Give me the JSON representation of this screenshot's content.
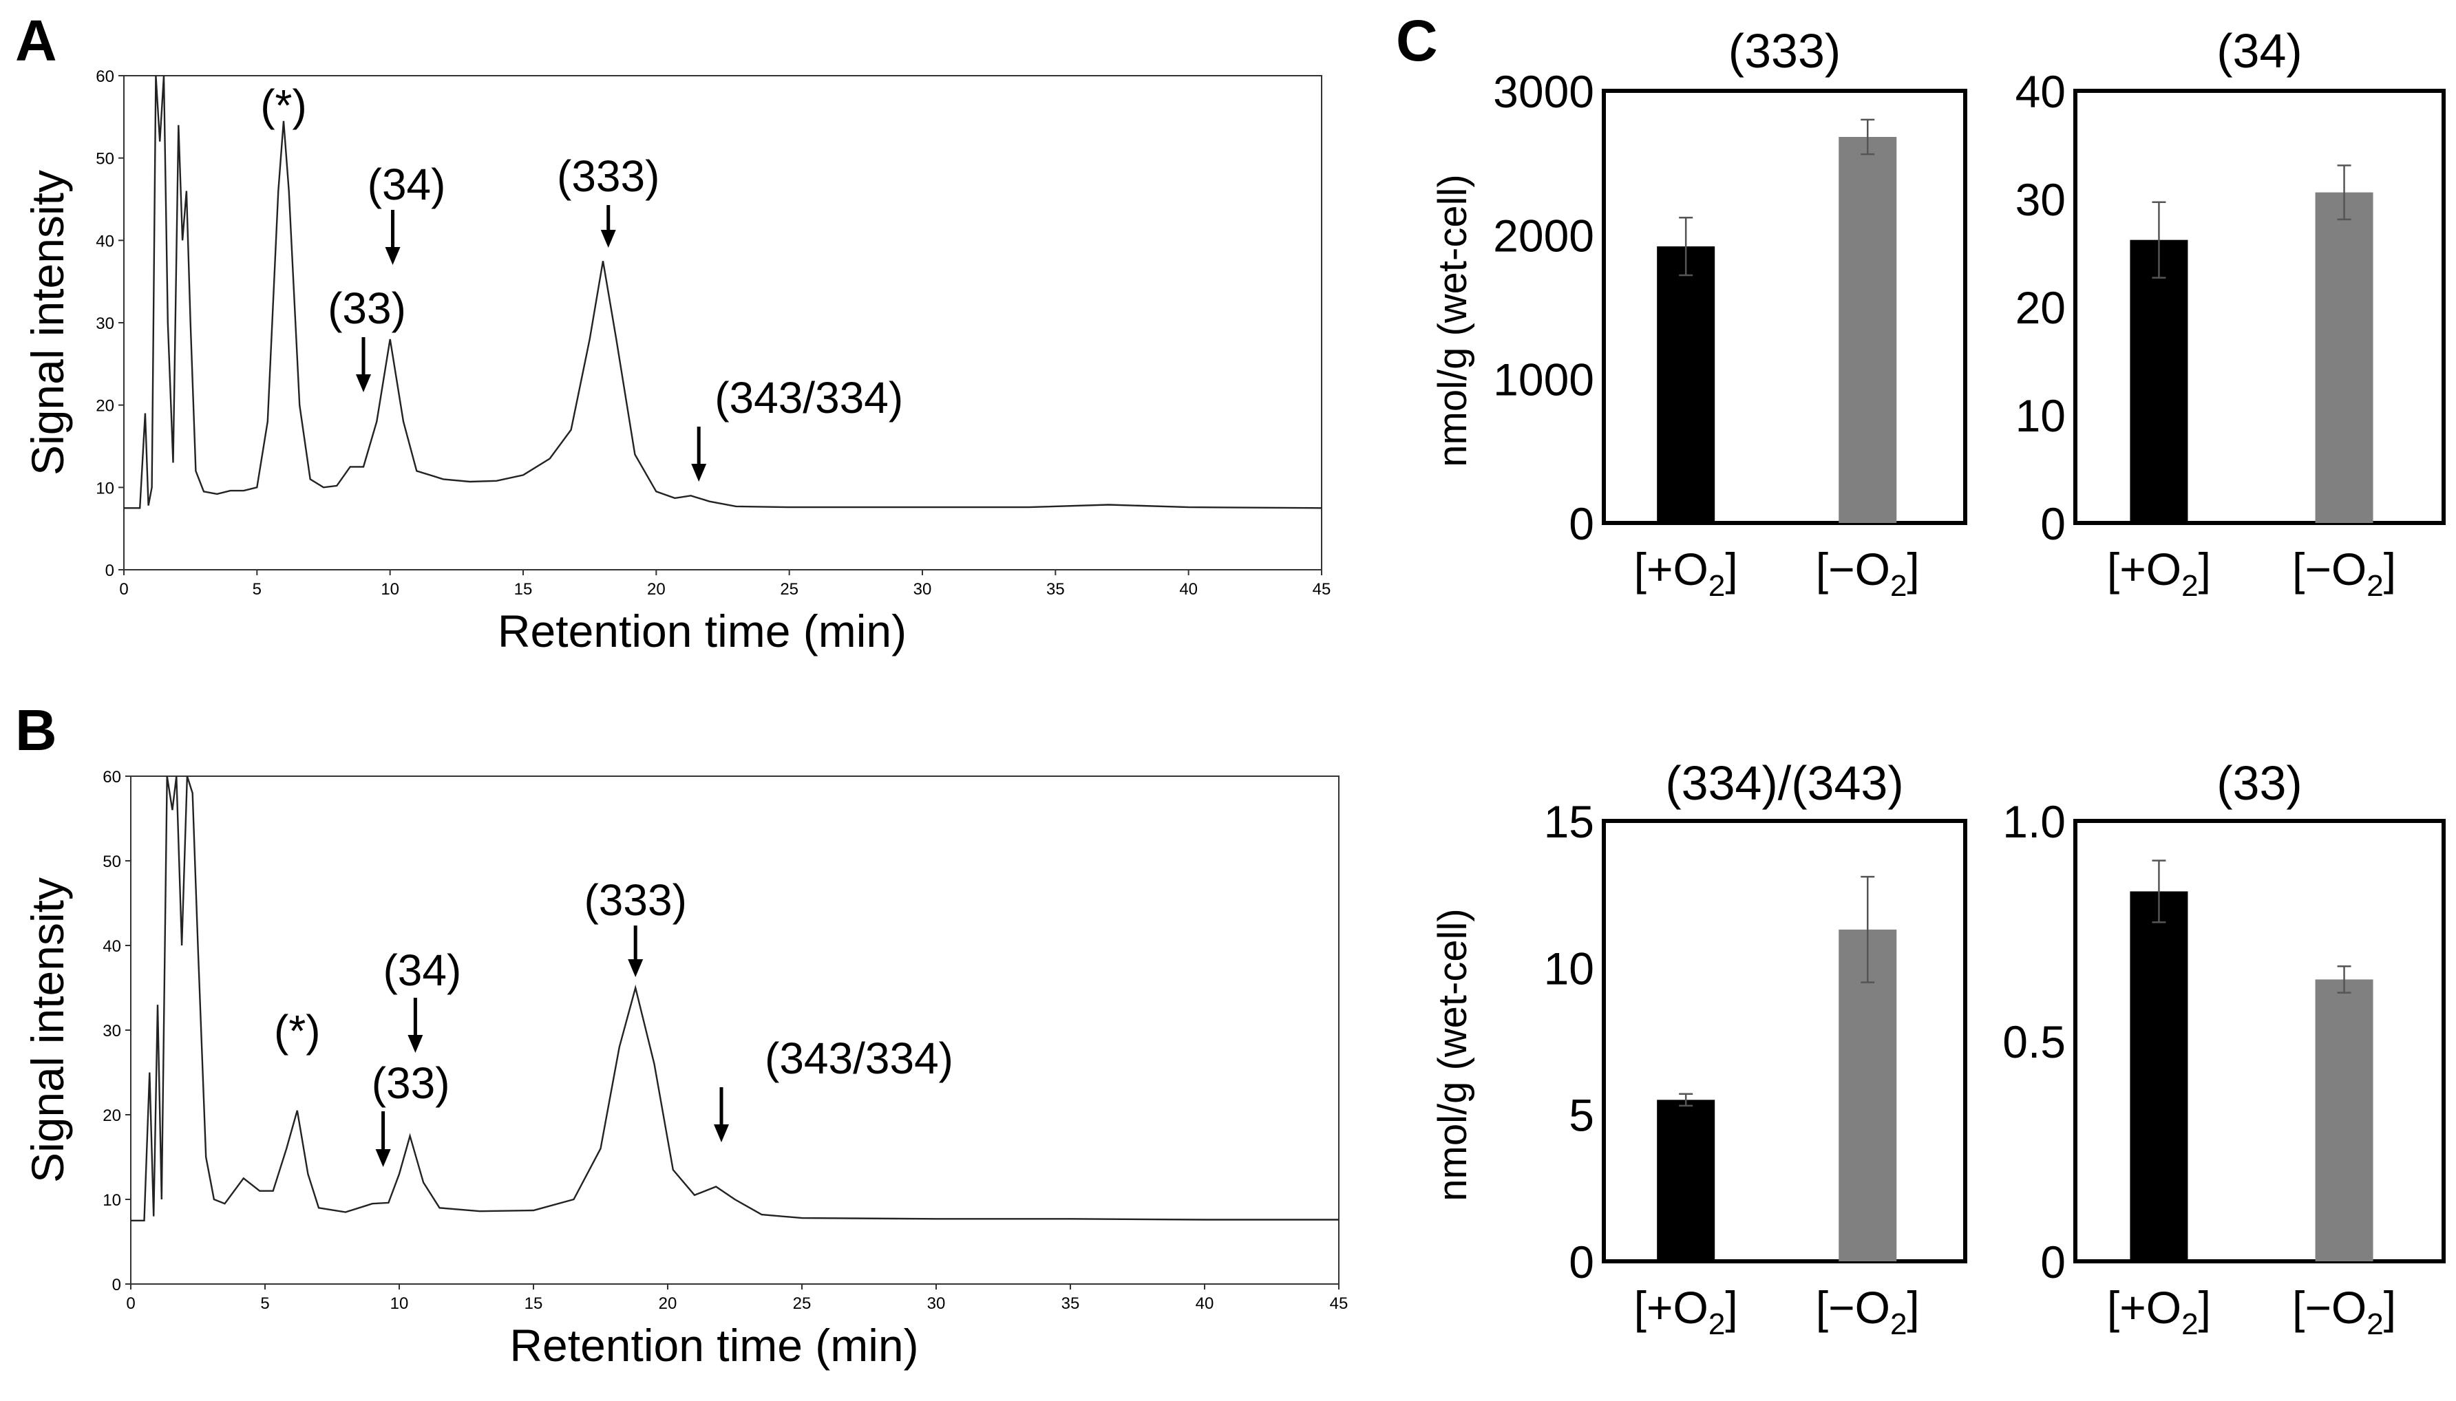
{
  "chart_data": [
    {
      "panel": "A",
      "type": "line",
      "xlabel": "Retention time (min)",
      "ylabel": "Signal intensity",
      "xlim": [
        0,
        45
      ],
      "ylim": [
        0,
        60
      ],
      "xticks": [
        0,
        5,
        10,
        15,
        20,
        25,
        30,
        35,
        40,
        45
      ],
      "yticks": [
        0,
        10,
        20,
        30,
        40,
        50,
        60
      ],
      "baseline": 7.5,
      "trace": [
        [
          0,
          7.5
        ],
        [
          0.6,
          7.5
        ],
        [
          0.8,
          19
        ],
        [
          0.92,
          7.8
        ],
        [
          1.05,
          10
        ],
        [
          1.2,
          60
        ],
        [
          1.35,
          52
        ],
        [
          1.5,
          60
        ],
        [
          1.65,
          30
        ],
        [
          1.85,
          13
        ],
        [
          2.05,
          54
        ],
        [
          2.2,
          40
        ],
        [
          2.35,
          46
        ],
        [
          2.5,
          30
        ],
        [
          2.7,
          12
        ],
        [
          3.0,
          9.5
        ],
        [
          3.5,
          9.2
        ],
        [
          4.0,
          9.6
        ],
        [
          4.5,
          9.6
        ],
        [
          5.0,
          10
        ],
        [
          5.4,
          18
        ],
        [
          5.8,
          46
        ],
        [
          6.0,
          54.5
        ],
        [
          6.2,
          46
        ],
        [
          6.6,
          20
        ],
        [
          7.0,
          11
        ],
        [
          7.5,
          10
        ],
        [
          8.0,
          10.2
        ],
        [
          8.5,
          12.5
        ],
        [
          9.0,
          12.5
        ],
        [
          9.5,
          18
        ],
        [
          10.0,
          28
        ],
        [
          10.5,
          18
        ],
        [
          11.0,
          12
        ],
        [
          12.0,
          11
        ],
        [
          13.0,
          10.7
        ],
        [
          14.0,
          10.8
        ],
        [
          15.0,
          11.5
        ],
        [
          16.0,
          13.5
        ],
        [
          16.8,
          17
        ],
        [
          17.5,
          28
        ],
        [
          18.0,
          37.5
        ],
        [
          18.5,
          28
        ],
        [
          19.2,
          14
        ],
        [
          20.0,
          9.5
        ],
        [
          20.7,
          8.7
        ],
        [
          21.3,
          9.0
        ],
        [
          22.0,
          8.3
        ],
        [
          23.0,
          7.7
        ],
        [
          25.0,
          7.6
        ],
        [
          30.0,
          7.6
        ],
        [
          34.0,
          7.6
        ],
        [
          37.0,
          7.9
        ],
        [
          40.0,
          7.6
        ],
        [
          45.0,
          7.5
        ]
      ],
      "annotations": [
        {
          "text": "(*)",
          "x": 6.0,
          "arrow": false
        },
        {
          "text": "(34)",
          "x": 10.1,
          "arrow": true
        },
        {
          "text": "(33)",
          "x": 9.0,
          "arrow": true
        },
        {
          "text": "(333)",
          "x": 18.2,
          "arrow": true
        },
        {
          "text": "(343/334)",
          "x": 21.6,
          "arrow": true
        }
      ]
    },
    {
      "panel": "B",
      "type": "line",
      "xlabel": "Retention time (min)",
      "ylabel": "Signal intensity",
      "xlim": [
        0,
        45
      ],
      "ylim": [
        0,
        60
      ],
      "xticks": [
        0,
        5,
        10,
        15,
        20,
        25,
        30,
        35,
        40,
        45
      ],
      "yticks": [
        0,
        10,
        20,
        30,
        40,
        50,
        60
      ],
      "baseline": 7.5,
      "trace": [
        [
          0,
          7.5
        ],
        [
          0.5,
          7.5
        ],
        [
          0.7,
          25
        ],
        [
          0.85,
          8
        ],
        [
          1.0,
          33
        ],
        [
          1.15,
          10
        ],
        [
          1.35,
          60
        ],
        [
          1.55,
          56
        ],
        [
          1.7,
          60
        ],
        [
          1.9,
          40
        ],
        [
          2.1,
          60
        ],
        [
          2.3,
          58
        ],
        [
          2.5,
          40
        ],
        [
          2.8,
          15
        ],
        [
          3.1,
          10
        ],
        [
          3.5,
          9.5
        ],
        [
          4.2,
          12.5
        ],
        [
          4.8,
          11
        ],
        [
          5.3,
          11
        ],
        [
          5.8,
          16
        ],
        [
          6.2,
          20.5
        ],
        [
          6.6,
          13
        ],
        [
          7.0,
          9
        ],
        [
          8.0,
          8.5
        ],
        [
          9.0,
          9.5
        ],
        [
          9.6,
          9.6
        ],
        [
          10.0,
          13
        ],
        [
          10.4,
          17.5
        ],
        [
          10.9,
          12
        ],
        [
          11.5,
          9
        ],
        [
          13.0,
          8.6
        ],
        [
          15.0,
          8.7
        ],
        [
          16.5,
          10
        ],
        [
          17.5,
          16
        ],
        [
          18.2,
          28
        ],
        [
          18.8,
          35
        ],
        [
          19.5,
          26
        ],
        [
          20.2,
          13.5
        ],
        [
          21.0,
          10.5
        ],
        [
          21.8,
          11.5
        ],
        [
          22.5,
          10
        ],
        [
          23.5,
          8.2
        ],
        [
          25.0,
          7.8
        ],
        [
          30.0,
          7.7
        ],
        [
          35.0,
          7.7
        ],
        [
          40.0,
          7.6
        ],
        [
          45.0,
          7.6
        ]
      ],
      "annotations": [
        {
          "text": "(*)",
          "x": 6.2,
          "arrow": false
        },
        {
          "text": "(34)",
          "x": 10.6,
          "arrow": true
        },
        {
          "text": "(33)",
          "x": 9.4,
          "arrow": true
        },
        {
          "text": "(333)",
          "x": 18.8,
          "arrow": true
        },
        {
          "text": "(343/334)",
          "x": 22.0,
          "arrow": true
        }
      ]
    },
    {
      "panel": "C",
      "type": "bar",
      "title": "(333)",
      "ylabel": "nmol/g (wet-cell)",
      "ylim": [
        0,
        3000
      ],
      "yticks": [
        "0",
        "1000",
        "2000",
        "3000"
      ],
      "categories": [
        {
          "main": "[+O",
          "sub": "2",
          "close": "]"
        },
        {
          "main": "[−O",
          "sub": "2",
          "close": "]"
        }
      ],
      "values": [
        1920,
        2680
      ],
      "errors": [
        200,
        120
      ],
      "colors": [
        "#000000",
        "#808080"
      ]
    },
    {
      "panel": "C",
      "type": "bar",
      "title": "(34)",
      "ylabel": "",
      "ylim": [
        0,
        40
      ],
      "yticks": [
        "0",
        "10",
        "20",
        "30",
        "40"
      ],
      "categories": [
        {
          "main": "[+O",
          "sub": "2",
          "close": "]"
        },
        {
          "main": "[−O",
          "sub": "2",
          "close": "]"
        }
      ],
      "values": [
        26.2,
        30.6
      ],
      "errors": [
        3.5,
        2.5
      ],
      "colors": [
        "#000000",
        "#808080"
      ]
    },
    {
      "panel": "C",
      "type": "bar",
      "title": "(334)/(343)",
      "ylabel": "nmol/g (wet-cell)",
      "ylim": [
        0,
        15
      ],
      "yticks": [
        "0",
        "5",
        "10",
        "15"
      ],
      "categories": [
        {
          "main": "[+O",
          "sub": "2",
          "close": "]"
        },
        {
          "main": "[−O",
          "sub": "2",
          "close": "]"
        }
      ],
      "values": [
        5.5,
        11.3
      ],
      "errors": [
        0.2,
        1.8
      ],
      "colors": [
        "#000000",
        "#808080"
      ]
    },
    {
      "panel": "C",
      "type": "bar",
      "title": "(33)",
      "ylabel": "",
      "ylim": [
        0,
        1.0
      ],
      "yticks": [
        "0",
        "0.5",
        "1.0"
      ],
      "categories": [
        {
          "main": "[+O",
          "sub": "2",
          "close": "]"
        },
        {
          "main": "[−O",
          "sub": "2",
          "close": "]"
        }
      ],
      "values": [
        0.84,
        0.64
      ],
      "errors": [
        0.07,
        0.03
      ],
      "colors": [
        "#000000",
        "#808080"
      ]
    }
  ]
}
